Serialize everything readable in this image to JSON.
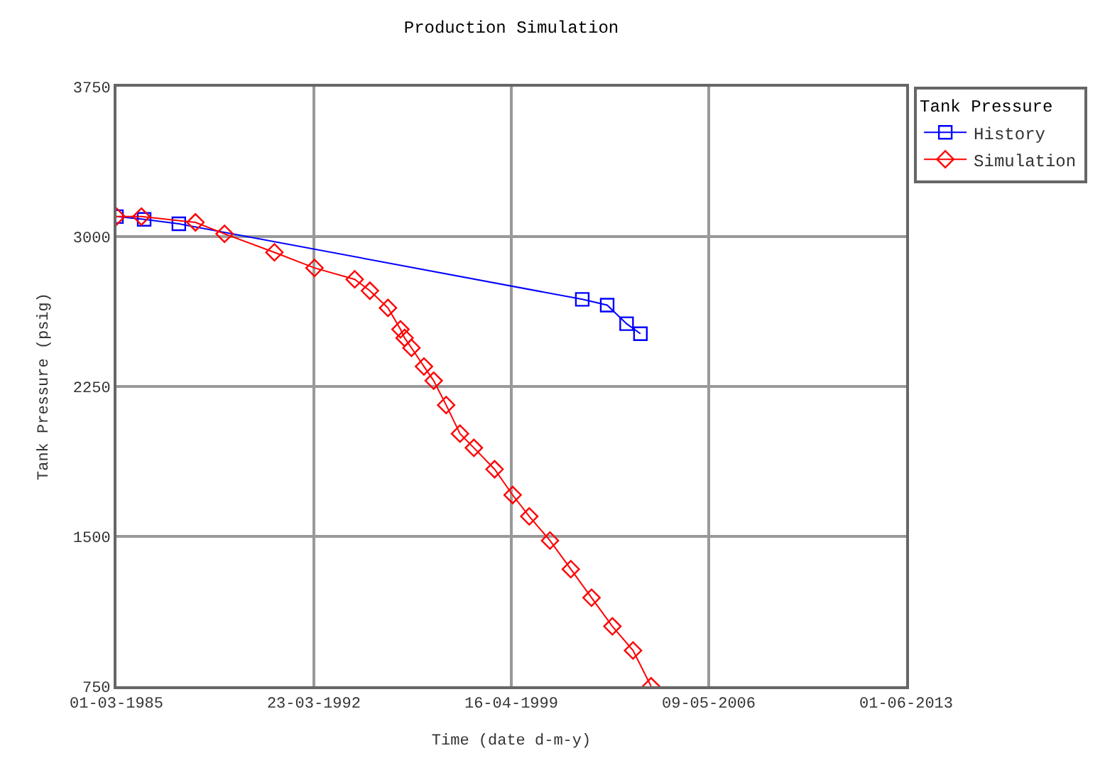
{
  "chart_data": {
    "type": "line",
    "title": "Production Simulation",
    "xlabel": "Time (date d-m-y)",
    "ylabel": "Tank Pressure (psig)",
    "legend_title": "Tank Pressure",
    "xlim": [
      "1985-03-01",
      "2013-06-01"
    ],
    "xticks": [
      {
        "value": "1985-03-01",
        "label": "01-03-1985"
      },
      {
        "value": "1992-03-23",
        "label": "23-03-1992"
      },
      {
        "value": "1999-04-16",
        "label": "16-04-1999"
      },
      {
        "value": "2006-05-09",
        "label": "09-05-2006"
      },
      {
        "value": "2013-06-01",
        "label": "01-06-2013"
      }
    ],
    "ylim": [
      750,
      3750
    ],
    "yticks": [
      750,
      1500,
      2250,
      3000,
      3750
    ],
    "grid": true,
    "legend": "top right",
    "series": [
      {
        "name": "History",
        "color": "#0000ff",
        "marker": "square",
        "x": [
          "1985-03-01",
          "1986-02-26",
          "1987-05-25",
          "2001-10-30",
          "2002-09-20",
          "2003-06-01",
          "2003-11-29"
        ],
        "values": [
          3100,
          3086,
          3064,
          2686,
          2657,
          2564,
          2514
        ]
      },
      {
        "name": "Simulation",
        "color": "#ff0000",
        "marker": "diamond",
        "x": [
          "1985-03-01",
          "1986-01-21",
          "1987-12-28",
          "1989-01-11",
          "1990-10-25",
          "1992-04-01",
          "1993-09-08",
          "1994-03-26",
          "1994-11-17",
          "1995-04-29",
          "1995-06-22",
          "1995-09-20",
          "1996-03-01",
          "1996-07-06",
          "1996-12-16",
          "1997-06-15",
          "1997-12-13",
          "1998-09-10",
          "1999-05-04",
          "1999-12-07",
          "2000-09-03",
          "2001-06-02",
          "2002-02-28",
          "2002-11-27",
          "2003-08-24",
          "2004-04-16"
        ],
        "values": [
          3100,
          3100,
          3071,
          3014,
          2921,
          2843,
          2786,
          2729,
          2643,
          2536,
          2493,
          2443,
          2350,
          2279,
          2157,
          2014,
          1943,
          1836,
          1707,
          1600,
          1479,
          1336,
          1193,
          1050,
          929,
          750
        ]
      }
    ]
  }
}
